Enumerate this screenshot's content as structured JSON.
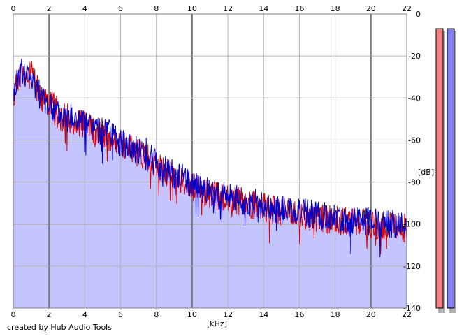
{
  "credit": "created by Hub Audio Tools",
  "colors": {
    "background": "#ffffff",
    "plot_background": "#ffffff",
    "grid": "#b4b4b4",
    "grid_major": "#7a7a7a",
    "fill": "#c4c4ff",
    "left_channel": "#e00000",
    "right_channel": "#0000cc",
    "meter_left": "#f08080",
    "meter_right": "#8080f0"
  },
  "chart_data": {
    "type": "line",
    "title": "",
    "xlabel": "[kHz]",
    "ylabel": "[dB]",
    "xlim": [
      0,
      22
    ],
    "ylim": [
      -140,
      0
    ],
    "x_ticks": [
      "0",
      "2",
      "4",
      "6",
      "8",
      "10",
      "12",
      "14",
      "16",
      "18",
      "20",
      "22"
    ],
    "y_ticks": [
      "0",
      "-20",
      "-40",
      "-60",
      "-80",
      "-100",
      "-120",
      "-140"
    ],
    "grid": true,
    "legend": "none",
    "x": [
      0,
      0.25,
      0.5,
      0.75,
      1,
      1.25,
      1.5,
      1.75,
      2,
      2.5,
      3,
      3.5,
      4,
      4.5,
      5,
      5.5,
      6,
      6.5,
      7,
      7.5,
      8,
      8.5,
      9,
      9.5,
      10,
      10.5,
      11,
      11.5,
      12,
      12.5,
      13,
      13.5,
      14,
      15,
      16,
      17,
      18,
      19,
      20,
      21,
      22
    ],
    "series": [
      {
        "values": [
          -42,
          -30,
          -28,
          -31,
          -29,
          -33,
          -40,
          -41,
          -42,
          -46,
          -49,
          -51,
          -53,
          -55,
          -57,
          -59,
          -62,
          -64,
          -66,
          -68,
          -73,
          -75,
          -77,
          -79,
          -82,
          -84,
          -86,
          -87,
          -88,
          -89,
          -90,
          -91,
          -92,
          -94,
          -95,
          -97,
          -98,
          -99,
          -100,
          -101,
          -102
        ]
      },
      {
        "values": [
          -40,
          -29,
          -27,
          -29,
          -28,
          -32,
          -39,
          -41,
          -43,
          -47,
          -48,
          -50,
          -52,
          -54,
          -56,
          -58,
          -61,
          -63,
          -65,
          -66,
          -72,
          -74,
          -76,
          -78,
          -80,
          -83,
          -85,
          -86,
          -87,
          -88,
          -89,
          -90,
          -91,
          -93,
          -94,
          -96,
          -97,
          -98,
          -99,
          -100,
          -101
        ]
      }
    ],
    "fill_envelope": [
      -38,
      -30,
      -29,
      -31,
      -30,
      -34,
      -41,
      -43,
      -44,
      -47,
      -50,
      -52,
      -54,
      -56,
      -58,
      -60,
      -63,
      -65,
      -67,
      -69,
      -74,
      -76,
      -78,
      -80,
      -82,
      -85,
      -87,
      -88,
      -89,
      -90,
      -91,
      -92,
      -93,
      -95,
      -96,
      -98,
      -99,
      -100,
      -101,
      -102,
      -103
    ],
    "level_meters": [
      {
        "level_db": -7
      },
      {
        "level_db": -7
      }
    ]
  }
}
